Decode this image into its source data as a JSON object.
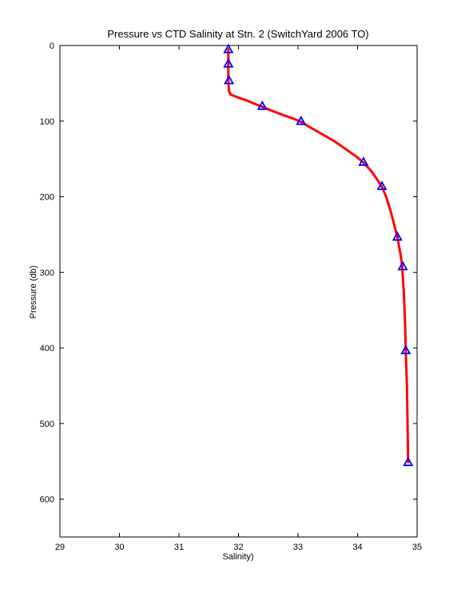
{
  "chart_data": {
    "type": "line",
    "title": "Pressure vs CTD Salinity at Stn. 2 (SwitchYard 2006 TO)",
    "xlabel": "Salinity)",
    "ylabel": "Pressure (db)",
    "xlim": [
      29,
      35
    ],
    "ylim": [
      0,
      650
    ],
    "y_reversed": true,
    "grid": false,
    "x_ticks": [
      29,
      30,
      31,
      32,
      33,
      34,
      35
    ],
    "y_ticks": [
      0,
      100,
      200,
      300,
      400,
      500,
      600
    ],
    "series": [
      {
        "kind": "line",
        "color": "#ff0000",
        "points": [
          [
            31.83,
            5
          ],
          [
            31.83,
            10
          ],
          [
            31.83,
            26
          ],
          [
            31.83,
            47
          ],
          [
            31.84,
            60
          ],
          [
            31.87,
            65
          ],
          [
            32.0,
            69
          ],
          [
            32.15,
            73
          ],
          [
            32.3,
            78
          ],
          [
            32.4,
            81
          ],
          [
            32.55,
            86
          ],
          [
            32.75,
            92
          ],
          [
            32.93,
            97
          ],
          [
            33.05,
            101
          ],
          [
            33.2,
            108
          ],
          [
            33.4,
            117
          ],
          [
            33.6,
            126
          ],
          [
            33.8,
            137
          ],
          [
            34.0,
            148
          ],
          [
            34.1,
            155
          ],
          [
            34.22,
            165
          ],
          [
            34.32,
            176
          ],
          [
            34.41,
            187
          ],
          [
            34.48,
            200
          ],
          [
            34.54,
            215
          ],
          [
            34.6,
            232
          ],
          [
            34.67,
            254
          ],
          [
            34.72,
            275
          ],
          [
            34.75,
            292
          ],
          [
            34.78,
            330
          ],
          [
            34.8,
            370
          ],
          [
            34.81,
            403
          ],
          [
            34.83,
            450
          ],
          [
            34.84,
            500
          ],
          [
            34.85,
            551
          ]
        ]
      },
      {
        "kind": "markers",
        "marker": "triangle",
        "color": "#0000ff",
        "points": [
          [
            31.83,
            5
          ],
          [
            31.83,
            24
          ],
          [
            31.84,
            46
          ],
          [
            32.4,
            80
          ],
          [
            33.05,
            100
          ],
          [
            34.1,
            154
          ],
          [
            34.41,
            186
          ],
          [
            34.67,
            253
          ],
          [
            34.76,
            292
          ],
          [
            34.81,
            403
          ],
          [
            34.85,
            551
          ]
        ]
      }
    ]
  }
}
